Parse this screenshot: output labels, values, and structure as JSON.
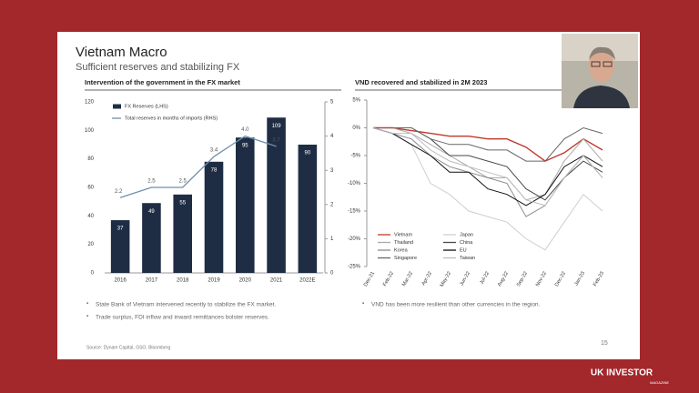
{
  "slide": {
    "title": "Vietnam Macro",
    "subtitle": "Sufficient reserves and stabilizing FX",
    "left_notes": [
      "State Bank of Vietnam intervened recently to stabilize the FX market.",
      "Trade surplus, FDI inflow  and inward remittances bolster reserves."
    ],
    "right_notes": [
      "VND has been more resilient than other currencies in the region."
    ],
    "source": "Source: Dynam Capital, GSO, Bloomberg",
    "page_number": "15"
  },
  "brand": {
    "name": "UK INVESTOR",
    "tagline": "MAGAZINE"
  },
  "chart_data": [
    {
      "type": "bar",
      "title": "Intervention of the government in the FX market",
      "categories": [
        "2016",
        "2017",
        "2018",
        "2019",
        "2020",
        "2021",
        "2022E"
      ],
      "series": [
        {
          "name": "FX Reserves (LHS)",
          "color": "#1f2d44",
          "values": [
            37,
            49,
            55,
            78,
            95,
            109,
            90
          ]
        },
        {
          "name": "Total reserves in months of imports (RHS)",
          "color": "#6f8fb0",
          "axis": "y2",
          "type": "line",
          "values": [
            2.2,
            2.5,
            2.5,
            3.4,
            4.0,
            3.7,
            null
          ],
          "value_labels": [
            "2.2",
            "2.5",
            "2.5",
            "3.4",
            "4.0",
            "3.7",
            null
          ]
        }
      ],
      "ylim": [
        0,
        120
      ],
      "yticks": [
        0,
        20,
        40,
        60,
        80,
        100,
        120
      ],
      "y2lim": [
        0,
        5
      ],
      "y2ticks": [
        0,
        1,
        2,
        3,
        4,
        5
      ],
      "legend": "top-left"
    },
    {
      "type": "line",
      "title": "VND recovered and stabilized in 2M 2023",
      "categories": [
        "Dec-21",
        "Feb-22",
        "Mar-22",
        "Apr-22",
        "May-22",
        "Jun-22",
        "Jul-22",
        "Aug-22",
        "Sep-22",
        "Nov-22",
        "Dec-22",
        "Jan-23",
        "Feb-23"
      ],
      "series": [
        {
          "name": "Vietnam",
          "color": "#c0392b",
          "values": [
            0,
            0,
            -0.5,
            -1,
            -1.5,
            -1.5,
            -2,
            -2,
            -3.5,
            -6,
            -4.5,
            -2,
            -4
          ]
        },
        {
          "name": "Japan",
          "color": "#cfcfcf",
          "values": [
            0,
            -1,
            -3,
            -10,
            -12,
            -15,
            -16,
            -17,
            -20,
            -22,
            -17,
            -12,
            -15
          ]
        },
        {
          "name": "Thailand",
          "color": "#a9a9a9",
          "values": [
            0,
            0,
            -1,
            -3,
            -5,
            -7,
            -9,
            -9,
            -13,
            -12,
            -6,
            -2,
            -6
          ]
        },
        {
          "name": "China",
          "color": "#4a4a4a",
          "values": [
            0,
            0,
            0,
            -2,
            -5,
            -5,
            -6,
            -7,
            -11,
            -13,
            -9,
            -6,
            -8
          ]
        },
        {
          "name": "Korea",
          "color": "#8a8a8a",
          "values": [
            0,
            -1,
            -2,
            -5,
            -7,
            -8,
            -9,
            -10,
            -16,
            -14,
            -9,
            -5,
            -9
          ]
        },
        {
          "name": "EU",
          "color": "#111111",
          "values": [
            0,
            -1,
            -3,
            -5,
            -8,
            -8,
            -11,
            -12,
            -14,
            -12,
            -7,
            -5,
            -7
          ]
        },
        {
          "name": "Singapore",
          "color": "#666666",
          "values": [
            0,
            0,
            0,
            -2,
            -3,
            -3,
            -4,
            -4,
            -6,
            -6,
            -2,
            0,
            -1
          ]
        },
        {
          "name": "Taiwan",
          "color": "#bdbdbd",
          "values": [
            0,
            -1,
            -1,
            -4,
            -6,
            -7,
            -8,
            -9,
            -13,
            -14,
            -9,
            -5,
            -9
          ]
        }
      ],
      "ylim": [
        -25,
        5
      ],
      "yticks": [
        {
          "value": -25,
          "label": "-25%"
        },
        {
          "value": -20,
          "label": "-20%"
        },
        {
          "value": -15,
          "label": "-15%"
        },
        {
          "value": -10,
          "label": "-10%"
        },
        {
          "value": -5,
          "label": "-5%"
        },
        {
          "value": 0,
          "label": "0%"
        },
        {
          "value": 5,
          "label": "5%"
        }
      ],
      "legend": "bottom-left"
    }
  ]
}
